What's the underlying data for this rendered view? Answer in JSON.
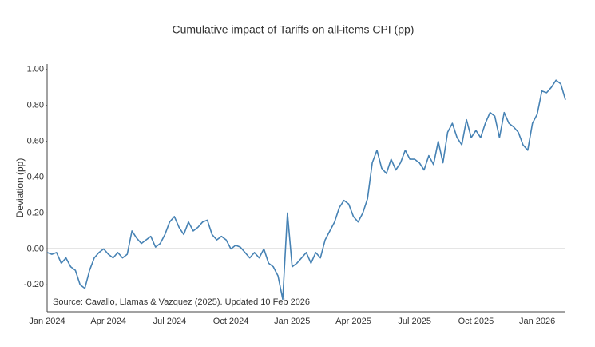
{
  "chart_data": {
    "type": "line",
    "title": "Cumulative impact of Tariffs on all-items CPI (pp)",
    "y_label": "Deviation (pp)",
    "annotation": "Source: Cavallo, Llamas & Vazquez (2025). Updated 10 Feb 2026",
    "categories": [
      "Jan 2024",
      null,
      null,
      null,
      null,
      null,
      null,
      null,
      null,
      null,
      null,
      null,
      null,
      "Apr 2024",
      null,
      null,
      null,
      null,
      null,
      null,
      null,
      null,
      null,
      null,
      null,
      null,
      "Jul 2024",
      null,
      null,
      null,
      null,
      null,
      null,
      null,
      null,
      null,
      null,
      null,
      null,
      "Oct 2024",
      null,
      null,
      null,
      null,
      null,
      null,
      null,
      null,
      null,
      null,
      null,
      null,
      "Jan 2025",
      null,
      null,
      null,
      null,
      null,
      null,
      null,
      null,
      null,
      null,
      null,
      null,
      "Apr 2025",
      null,
      null,
      null,
      null,
      null,
      null,
      null,
      null,
      null,
      null,
      null,
      null,
      "Jul 2025",
      null,
      null,
      null,
      null,
      null,
      null,
      null,
      null,
      null,
      null,
      null,
      null,
      "Oct 2025",
      null,
      null,
      null,
      null,
      null,
      null,
      null,
      null,
      null,
      null,
      null,
      null,
      "Jan 2026",
      null,
      null,
      null,
      null,
      null,
      null
    ],
    "series": [
      {
        "name": "Cumulative impact",
        "color": "#4682b4",
        "values": [
          -0.02,
          -0.03,
          -0.02,
          -0.08,
          -0.05,
          -0.1,
          -0.12,
          -0.2,
          -0.22,
          -0.12,
          -0.05,
          -0.02,
          0.0,
          -0.03,
          -0.05,
          -0.02,
          -0.05,
          -0.03,
          0.1,
          0.06,
          0.03,
          0.05,
          0.07,
          0.01,
          0.03,
          0.08,
          0.15,
          0.18,
          0.12,
          0.08,
          0.15,
          0.1,
          0.12,
          0.15,
          0.16,
          0.08,
          0.05,
          0.07,
          0.05,
          0.0,
          0.02,
          0.01,
          -0.02,
          -0.05,
          -0.02,
          -0.05,
          0.0,
          -0.08,
          -0.1,
          -0.15,
          -0.28,
          0.2,
          -0.1,
          -0.08,
          -0.05,
          -0.02,
          -0.08,
          -0.02,
          -0.05,
          0.05,
          0.1,
          0.15,
          0.23,
          0.27,
          0.25,
          0.18,
          0.15,
          0.2,
          0.28,
          0.48,
          0.55,
          0.45,
          0.42,
          0.5,
          0.44,
          0.48,
          0.55,
          0.5,
          0.5,
          0.48,
          0.44,
          0.52,
          0.47,
          0.6,
          0.48,
          0.65,
          0.7,
          0.62,
          0.58,
          0.72,
          0.62,
          0.66,
          0.62,
          0.7,
          0.76,
          0.74,
          0.62,
          0.76,
          0.7,
          0.68,
          0.65,
          0.58,
          0.55,
          0.7,
          0.75,
          0.88,
          0.87,
          0.9,
          0.94,
          0.92,
          0.83
        ]
      }
    ],
    "ylim": [
      -0.35,
      1.03
    ],
    "yticks": [
      {
        "value": -0.2,
        "label": "-0.20"
      },
      {
        "value": 0,
        "label": "0.00"
      },
      {
        "value": 0.2,
        "label": "0.20"
      },
      {
        "value": 0.4,
        "label": "0.40"
      },
      {
        "value": 0.6,
        "label": "0.60"
      },
      {
        "value": 0.8,
        "label": "0.80"
      },
      {
        "value": 1,
        "label": "1.00"
      }
    ],
    "zeroline": true,
    "grid": false
  }
}
